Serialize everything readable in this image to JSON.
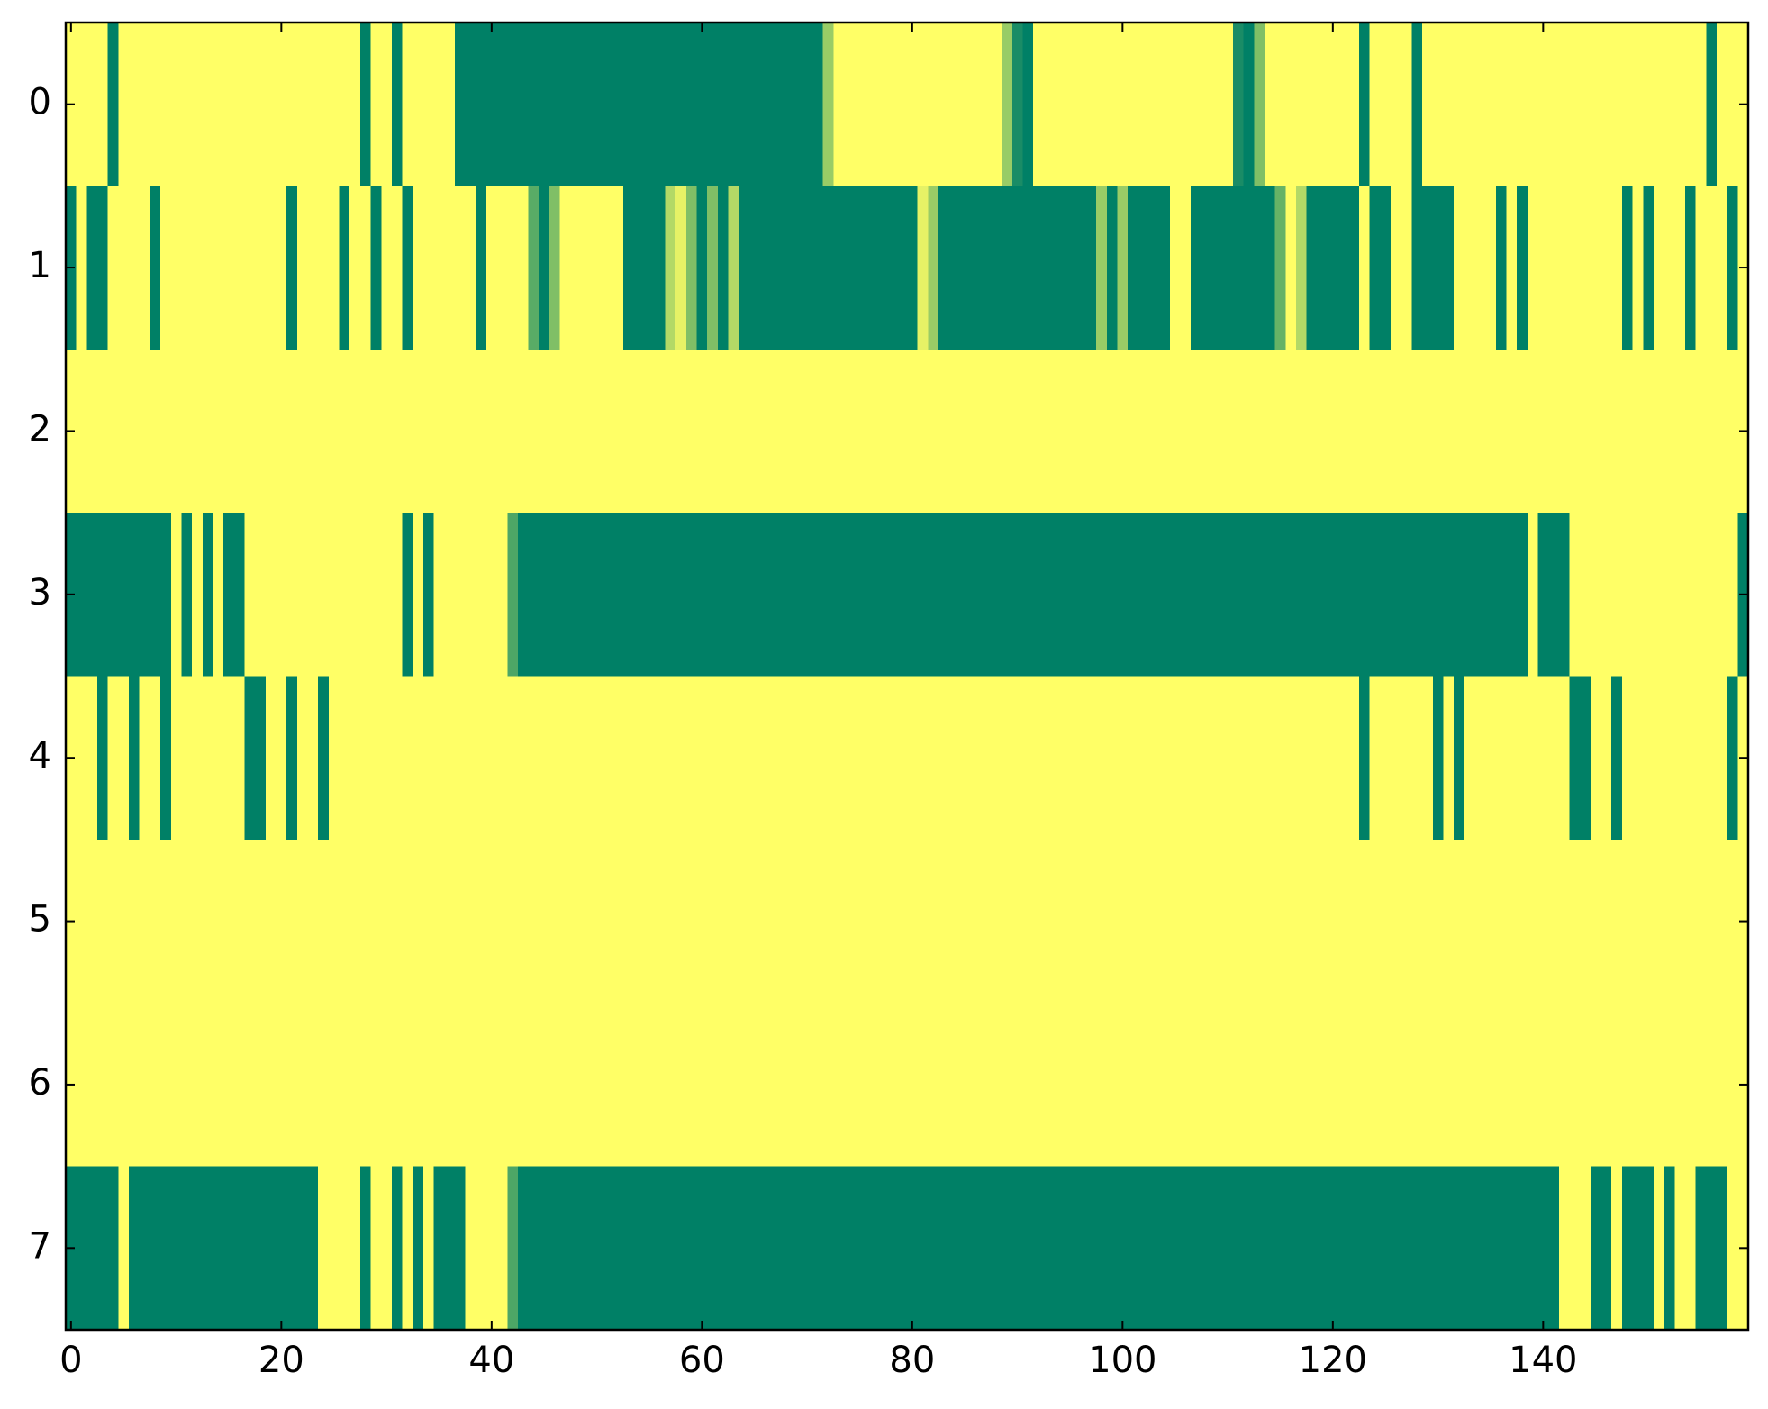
{
  "chart_data": {
    "type": "heatmap",
    "colormap": "summer",
    "xlim": [
      -0.5,
      159.5
    ],
    "ylim": [
      7.5,
      -0.5
    ],
    "xticks": [
      0,
      20,
      40,
      60,
      80,
      100,
      120,
      140
    ],
    "yticks": [
      0,
      1,
      2,
      3,
      4,
      5,
      6,
      7
    ],
    "z": [
      [
        1,
        1,
        1,
        1,
        0,
        1,
        1,
        1,
        1,
        1,
        1,
        1,
        1,
        1,
        1,
        1,
        1,
        1,
        1,
        1,
        1,
        1,
        1,
        1,
        1,
        1,
        1,
        1,
        0,
        1,
        1,
        0,
        1,
        1,
        1,
        1,
        1,
        0,
        0,
        0,
        0,
        0,
        0,
        0,
        0,
        0,
        0,
        0,
        0,
        0,
        0,
        0,
        0,
        0,
        0,
        0,
        0,
        0,
        0,
        0,
        0,
        0,
        0,
        0,
        0,
        0,
        0,
        0,
        0,
        0,
        0,
        0,
        0.6,
        1,
        1,
        1,
        1,
        1,
        1,
        1,
        1,
        1,
        1,
        1,
        1,
        1,
        1,
        1,
        1,
        0.6,
        0.1,
        0,
        1,
        1,
        1,
        1,
        1,
        1,
        1,
        1,
        1,
        1,
        1,
        1,
        1,
        1,
        1,
        1,
        1,
        1,
        1,
        0.1,
        0,
        0.5,
        1,
        1,
        1,
        1,
        1,
        1,
        1,
        1,
        1,
        0,
        1,
        1,
        1,
        1,
        0,
        1,
        1,
        1,
        1,
        1,
        1,
        1,
        1,
        1,
        1,
        1,
        1,
        1,
        1,
        1,
        1,
        1,
        1,
        1,
        1,
        1,
        1,
        1,
        1,
        1,
        1,
        1,
        0,
        1,
        1,
        1
      ],
      [
        0,
        1,
        0,
        0,
        1,
        1,
        1,
        1,
        0,
        1,
        1,
        1,
        1,
        1,
        1,
        1,
        1,
        1,
        1,
        1,
        1,
        0,
        1,
        1,
        1,
        1,
        0,
        1,
        1,
        0,
        1,
        1,
        0,
        1,
        1,
        1,
        1,
        1,
        1,
        0,
        1,
        1,
        1,
        1,
        0.35,
        0,
        0.5,
        1,
        1,
        1,
        1,
        1,
        1,
        0,
        0,
        0,
        0,
        0.7,
        0.9,
        0.5,
        0,
        0.5,
        0,
        0.7,
        0,
        0,
        0,
        0,
        0,
        0,
        0,
        0,
        0,
        0,
        0,
        0,
        0,
        0,
        0,
        0,
        0,
        0.9,
        0.6,
        0,
        0,
        0,
        0,
        0,
        0,
        0,
        0,
        0,
        0,
        0,
        0,
        0,
        0,
        0,
        0.6,
        0,
        0.6,
        0,
        0,
        0,
        0,
        1,
        1,
        0,
        0,
        0,
        0,
        0,
        0,
        0,
        0,
        0.4,
        1,
        0.7,
        0,
        0,
        0,
        0,
        0,
        1,
        0,
        0,
        1,
        1,
        0,
        0,
        0,
        0,
        1,
        1,
        1,
        1,
        0,
        1,
        0,
        1,
        1,
        1,
        1,
        1,
        1,
        1,
        1,
        1,
        0,
        1,
        0,
        1,
        1,
        1,
        0,
        1,
        1,
        1,
        0,
        1
      ],
      [
        1,
        1,
        1,
        1,
        1,
        1,
        1,
        1,
        1,
        1,
        1,
        1,
        1,
        1,
        1,
        1,
        1,
        1,
        1,
        1,
        1,
        1,
        1,
        1,
        1,
        1,
        1,
        1,
        1,
        1,
        1,
        1,
        1,
        1,
        1,
        1,
        1,
        1,
        1,
        1,
        1,
        1,
        1,
        1,
        1,
        1,
        1,
        1,
        1,
        1,
        1,
        1,
        1,
        1,
        1,
        1,
        1,
        1,
        1,
        1,
        1,
        1,
        1,
        1,
        1,
        1,
        1,
        1,
        1,
        1,
        1,
        1,
        1,
        1,
        1,
        1,
        1,
        1,
        1,
        1,
        1,
        1,
        1,
        1,
        1,
        1,
        1,
        1,
        1,
        1,
        1,
        1,
        1,
        1,
        1,
        1,
        1,
        1,
        1,
        1,
        1,
        1,
        1,
        1,
        1,
        1,
        1,
        1,
        1,
        1,
        1,
        1,
        1,
        1,
        1,
        1,
        1,
        1,
        1,
        1,
        1,
        1,
        1,
        1,
        1,
        1,
        1,
        1,
        1,
        1,
        1,
        1,
        1,
        1,
        1,
        1,
        1,
        1,
        1,
        1,
        1,
        1,
        1,
        1,
        1,
        1,
        1,
        1,
        1,
        1,
        1,
        1,
        1,
        1,
        1,
        1,
        1,
        1,
        1,
        1
      ],
      [
        0,
        0,
        0,
        0,
        0,
        0,
        0,
        0,
        0,
        0,
        1,
        0,
        1,
        0,
        1,
        0,
        0,
        1,
        1,
        1,
        1,
        1,
        1,
        1,
        1,
        1,
        1,
        1,
        1,
        1,
        1,
        1,
        0,
        1,
        0,
        1,
        1,
        1,
        1,
        1,
        1,
        1,
        0.3,
        0,
        0,
        0,
        0,
        0,
        0,
        0,
        0,
        0,
        0,
        0,
        0,
        0,
        0,
        0,
        0,
        0,
        0,
        0,
        0,
        0,
        0,
        0,
        0,
        0,
        0,
        0,
        0,
        0,
        0,
        0,
        0,
        0,
        0,
        0,
        0,
        0,
        0,
        0,
        0,
        0,
        0,
        0,
        0,
        0,
        0,
        0,
        0,
        0,
        0,
        0,
        0,
        0,
        0,
        0,
        0,
        0,
        0,
        0,
        0,
        0,
        0,
        0,
        0,
        0,
        0,
        0,
        0,
        0,
        0,
        0,
        0,
        0,
        0,
        0,
        0,
        0,
        0,
        0,
        0,
        0,
        0,
        0,
        0,
        0,
        0,
        0,
        0,
        0,
        0,
        0,
        0,
        0,
        0,
        0,
        0,
        1,
        0,
        0,
        0,
        1,
        1,
        1,
        1,
        1,
        1,
        1,
        1,
        1,
        1,
        1,
        1,
        1,
        1,
        1,
        1,
        0
      ],
      [
        1,
        1,
        1,
        0,
        1,
        1,
        0,
        1,
        1,
        0,
        1,
        1,
        1,
        1,
        1,
        1,
        1,
        0,
        0,
        1,
        1,
        0,
        1,
        1,
        0,
        1,
        1,
        1,
        1,
        1,
        1,
        1,
        1,
        1,
        1,
        1,
        1,
        1,
        1,
        1,
        1,
        1,
        1,
        1,
        1,
        1,
        1,
        1,
        1,
        1,
        1,
        1,
        1,
        1,
        1,
        1,
        1,
        1,
        1,
        1,
        1,
        1,
        1,
        1,
        1,
        1,
        1,
        1,
        1,
        1,
        1,
        1,
        1,
        1,
        1,
        1,
        1,
        1,
        1,
        1,
        1,
        1,
        1,
        1,
        1,
        1,
        1,
        1,
        1,
        1,
        1,
        1,
        1,
        1,
        1,
        1,
        1,
        1,
        1,
        1,
        1,
        1,
        1,
        1,
        1,
        1,
        1,
        1,
        1,
        1,
        1,
        1,
        1,
        1,
        1,
        1,
        1,
        1,
        1,
        1,
        1,
        1,
        1,
        0,
        1,
        1,
        1,
        1,
        1,
        1,
        0,
        1,
        0,
        1,
        1,
        1,
        1,
        1,
        1,
        1,
        1,
        1,
        1,
        0,
        0,
        1,
        1,
        0,
        1,
        1,
        1,
        1,
        1,
        1,
        1,
        1,
        1,
        1,
        0,
        1
      ],
      [
        1,
        1,
        1,
        1,
        1,
        1,
        1,
        1,
        1,
        1,
        1,
        1,
        1,
        1,
        1,
        1,
        1,
        1,
        1,
        1,
        1,
        1,
        1,
        1,
        1,
        1,
        1,
        1,
        1,
        1,
        1,
        1,
        1,
        1,
        1,
        1,
        1,
        1,
        1,
        1,
        1,
        1,
        1,
        1,
        1,
        1,
        1,
        1,
        1,
        1,
        1,
        1,
        1,
        1,
        1,
        1,
        1,
        1,
        1,
        1,
        1,
        1,
        1,
        1,
        1,
        1,
        1,
        1,
        1,
        1,
        1,
        1,
        1,
        1,
        1,
        1,
        1,
        1,
        1,
        1,
        1,
        1,
        1,
        1,
        1,
        1,
        1,
        1,
        1,
        1,
        1,
        1,
        1,
        1,
        1,
        1,
        1,
        1,
        1,
        1,
        1,
        1,
        1,
        1,
        1,
        1,
        1,
        1,
        1,
        1,
        1,
        1,
        1,
        1,
        1,
        1,
        1,
        1,
        1,
        1,
        1,
        1,
        1,
        1,
        1,
        1,
        1,
        1,
        1,
        1,
        1,
        1,
        1,
        1,
        1,
        1,
        1,
        1,
        1,
        1,
        1,
        1,
        1,
        1,
        1,
        1,
        1,
        1,
        1,
        1,
        1,
        1,
        1,
        1,
        1,
        1,
        1,
        1,
        1,
        1
      ],
      [
        1,
        1,
        1,
        1,
        1,
        1,
        1,
        1,
        1,
        1,
        1,
        1,
        1,
        1,
        1,
        1,
        1,
        1,
        1,
        1,
        1,
        1,
        1,
        1,
        1,
        1,
        1,
        1,
        1,
        1,
        1,
        1,
        1,
        1,
        1,
        1,
        1,
        1,
        1,
        1,
        1,
        1,
        1,
        1,
        1,
        1,
        1,
        1,
        1,
        1,
        1,
        1,
        1,
        1,
        1,
        1,
        1,
        1,
        1,
        1,
        1,
        1,
        1,
        1,
        1,
        1,
        1,
        1,
        1,
        1,
        1,
        1,
        1,
        1,
        1,
        1,
        1,
        1,
        1,
        1,
        1,
        1,
        1,
        1,
        1,
        1,
        1,
        1,
        1,
        1,
        1,
        1,
        1,
        1,
        1,
        1,
        1,
        1,
        1,
        1,
        1,
        1,
        1,
        1,
        1,
        1,
        1,
        1,
        1,
        1,
        1,
        1,
        1,
        1,
        1,
        1,
        1,
        1,
        1,
        1,
        1,
        1,
        1,
        1,
        1,
        1,
        1,
        1,
        1,
        1,
        1,
        1,
        1,
        1,
        1,
        1,
        1,
        1,
        1,
        1,
        1,
        1,
        1,
        1,
        1,
        1,
        1,
        1,
        1,
        1,
        1,
        1,
        1,
        1,
        1,
        1,
        1,
        1,
        1,
        1
      ],
      [
        0,
        0,
        0,
        0,
        0,
        1,
        0,
        0,
        0,
        0,
        0,
        0,
        0,
        0,
        0,
        0,
        0,
        0,
        0,
        0,
        0,
        0,
        0,
        0,
        1,
        1,
        1,
        1,
        0,
        1,
        1,
        0,
        1,
        0,
        1,
        0,
        0,
        0,
        1,
        1,
        1,
        1,
        0.3,
        0,
        0,
        0,
        0,
        0,
        0,
        0,
        0,
        0,
        0,
        0,
        0,
        0,
        0,
        0,
        0,
        0,
        0,
        0,
        0,
        0,
        0,
        0,
        0,
        0,
        0,
        0,
        0,
        0,
        0,
        0,
        0,
        0,
        0,
        0,
        0,
        0,
        0,
        0,
        0,
        0,
        0,
        0,
        0,
        0,
        0,
        0,
        0,
        0,
        0,
        0,
        0,
        0,
        0,
        0,
        0,
        0,
        0,
        0,
        0,
        0,
        0,
        0,
        0,
        0,
        0,
        0,
        0,
        0,
        0,
        0,
        0,
        0,
        0,
        0,
        0,
        0,
        0,
        0,
        0,
        0,
        0,
        0,
        0,
        0,
        0,
        0,
        0,
        0,
        0,
        0,
        0,
        0,
        0,
        0,
        0,
        0,
        0,
        0,
        1,
        1,
        1,
        0,
        0,
        1,
        0,
        0,
        0,
        1,
        0,
        1,
        1,
        0,
        0,
        0,
        1,
        1
      ]
    ]
  }
}
